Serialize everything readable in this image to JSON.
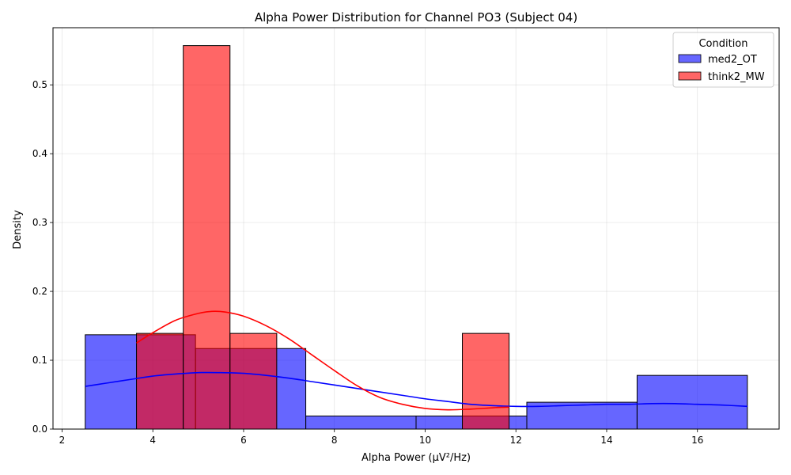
{
  "chart_data": {
    "type": "bar",
    "title": "Alpha Power Distribution for Channel PO3 (Subject 04)",
    "xlabel": "Alpha Power (μV²/Hz)",
    "ylabel": "Density",
    "xlim": [
      1.8,
      17.8
    ],
    "ylim": [
      0,
      0.583
    ],
    "xticks": [
      2,
      4,
      6,
      8,
      10,
      12,
      14,
      16
    ],
    "yticks": [
      0.0,
      0.1,
      0.2,
      0.3,
      0.4,
      0.5
    ],
    "grid": true,
    "legend": {
      "title": "Condition",
      "position": "top-right"
    },
    "series": [
      {
        "name": "med2_OT",
        "color": "#0000ff",
        "bins": [
          {
            "x0": 2.51,
            "x1": 4.94,
            "density": 0.137
          },
          {
            "x0": 4.94,
            "x1": 7.37,
            "density": 0.117
          },
          {
            "x0": 7.37,
            "x1": 9.8,
            "density": 0.019
          },
          {
            "x0": 9.8,
            "x1": 12.24,
            "density": 0.019
          },
          {
            "x0": 12.24,
            "x1": 14.67,
            "density": 0.039
          },
          {
            "x0": 14.67,
            "x1": 17.1,
            "density": 0.078
          }
        ],
        "kde": {
          "x": [
            2.51,
            3.0,
            3.5,
            4.0,
            4.5,
            5.0,
            5.5,
            6.0,
            6.5,
            7.0,
            7.5,
            8.0,
            8.5,
            9.0,
            9.5,
            10.0,
            10.5,
            11.0,
            11.5,
            12.0,
            12.5,
            13.0,
            13.5,
            14.0,
            14.5,
            15.0,
            15.5,
            16.0,
            16.5,
            17.1
          ],
          "y": [
            0.062,
            0.067,
            0.072,
            0.077,
            0.08,
            0.082,
            0.082,
            0.081,
            0.078,
            0.074,
            0.069,
            0.064,
            0.059,
            0.054,
            0.049,
            0.044,
            0.04,
            0.036,
            0.034,
            0.033,
            0.033,
            0.034,
            0.035,
            0.036,
            0.036,
            0.037,
            0.037,
            0.036,
            0.035,
            0.033
          ]
        }
      },
      {
        "name": "think2_MW",
        "color": "#ff0000",
        "bins": [
          {
            "x0": 3.64,
            "x1": 4.67,
            "density": 0.139
          },
          {
            "x0": 4.67,
            "x1": 5.7,
            "density": 0.557
          },
          {
            "x0": 5.7,
            "x1": 6.73,
            "density": 0.139
          },
          {
            "x0": 10.82,
            "x1": 11.85,
            "density": 0.139
          }
        ],
        "kde": {
          "x": [
            3.64,
            4.0,
            4.5,
            5.0,
            5.3,
            5.6,
            6.0,
            6.5,
            7.0,
            7.5,
            8.0,
            8.5,
            9.0,
            9.5,
            10.0,
            10.5,
            11.0,
            11.5,
            11.85
          ],
          "y": [
            0.125,
            0.14,
            0.158,
            0.168,
            0.171,
            0.17,
            0.164,
            0.15,
            0.131,
            0.108,
            0.085,
            0.063,
            0.046,
            0.036,
            0.03,
            0.028,
            0.029,
            0.031,
            0.032
          ]
        }
      }
    ]
  }
}
